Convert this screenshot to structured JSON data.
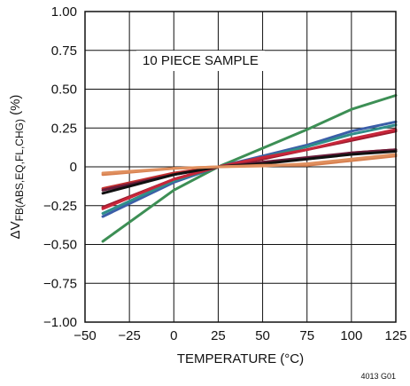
{
  "chart_data": {
    "type": "line",
    "title": "",
    "xlabel": "TEMPERATURE (°C)",
    "ylabel": "ΔVFB(ABS,EQ,FL,CHG) (%)",
    "ylabel_main": "ΔV",
    "ylabel_sub": "FB(ABS,EQ,FL,CHG)",
    "ylabel_unit": " (%)",
    "xlim": [
      -50,
      125
    ],
    "ylim": [
      -1.0,
      1.0
    ],
    "x_ticks": [
      -50,
      -25,
      0,
      25,
      50,
      75,
      100,
      125
    ],
    "x_tick_labels": [
      "−50",
      "−25",
      "0",
      "25",
      "50",
      "75",
      "100",
      "125"
    ],
    "y_ticks": [
      1.0,
      0.75,
      0.5,
      0.25,
      0,
      -0.25,
      -0.5,
      -0.75,
      -1.0
    ],
    "y_tick_labels": [
      "1.00",
      "0.75",
      "0.50",
      "0.25",
      "0",
      "−0.25",
      "−0.50",
      "−0.75",
      "−1.00"
    ],
    "grid": true,
    "annotation": "10 PIECE SAMPLE",
    "figure_id": "4013 G01",
    "series": [
      {
        "color": "#3d8f55",
        "x": [
          -40,
          0,
          25,
          50,
          75,
          100,
          125
        ],
        "y": [
          -0.48,
          -0.15,
          0.0,
          0.12,
          0.24,
          0.37,
          0.46
        ]
      },
      {
        "color": "#3b5ea8",
        "x": [
          -40,
          0,
          25,
          50,
          75,
          100,
          125
        ],
        "y": [
          -0.32,
          -0.1,
          0.0,
          0.07,
          0.14,
          0.23,
          0.29
        ]
      },
      {
        "color": "#2f8f8a",
        "x": [
          -40,
          0,
          25,
          50,
          75,
          100,
          125
        ],
        "y": [
          -0.3,
          -0.09,
          0.0,
          0.06,
          0.13,
          0.21,
          0.27
        ]
      },
      {
        "color": "#9b1c2e",
        "x": [
          -40,
          0,
          25,
          50,
          75,
          100,
          125
        ],
        "y": [
          -0.26,
          -0.08,
          0.0,
          0.05,
          0.11,
          0.17,
          0.23
        ]
      },
      {
        "color": "#c8263a",
        "x": [
          -40,
          0,
          25,
          50,
          75,
          100,
          125
        ],
        "y": [
          -0.27,
          -0.08,
          0.0,
          0.06,
          0.11,
          0.18,
          0.24
        ]
      },
      {
        "color": "#c23030",
        "x": [
          -40,
          0,
          25,
          50,
          75,
          100,
          125
        ],
        "y": [
          -0.14,
          -0.04,
          0.0,
          0.03,
          0.05,
          0.09,
          0.11
        ]
      },
      {
        "color": "#6b1c3b",
        "x": [
          -40,
          0,
          25,
          50,
          75,
          100,
          125
        ],
        "y": [
          -0.15,
          -0.05,
          0.0,
          0.03,
          0.06,
          0.09,
          0.11
        ]
      },
      {
        "color": "#111111",
        "x": [
          -40,
          0,
          25,
          50,
          75,
          100,
          125
        ],
        "y": [
          -0.17,
          -0.05,
          0.0,
          0.02,
          0.05,
          0.08,
          0.1
        ]
      },
      {
        "color": "#d77f4f",
        "x": [
          -40,
          0,
          25,
          50,
          75,
          100,
          125
        ],
        "y": [
          -0.05,
          -0.01,
          0.0,
          0.01,
          0.01,
          0.04,
          0.07
        ]
      },
      {
        "color": "#e0905f",
        "x": [
          -40,
          0,
          25,
          50,
          75,
          100,
          125
        ],
        "y": [
          -0.04,
          -0.01,
          0.0,
          0.005,
          0.02,
          0.05,
          0.08
        ]
      }
    ]
  }
}
